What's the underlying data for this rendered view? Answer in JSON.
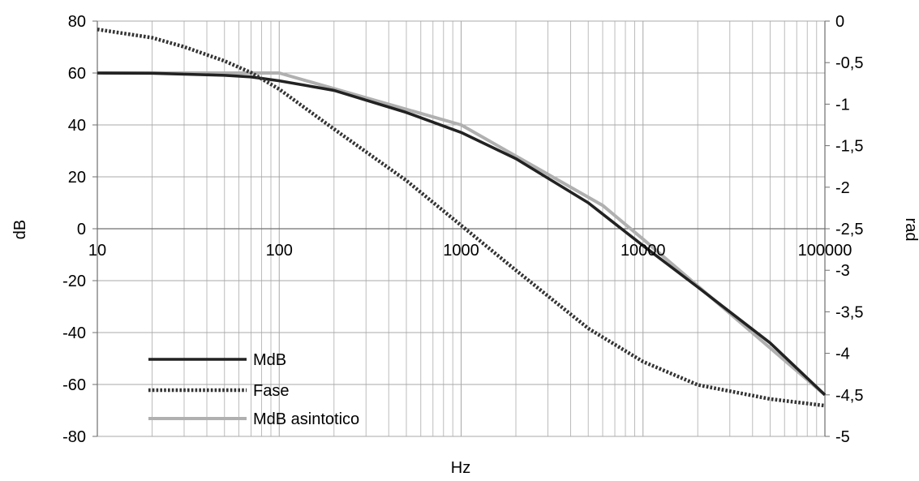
{
  "chart_data": {
    "type": "line",
    "xlabel": "Hz",
    "ylabel": "dB",
    "y2label": "rad",
    "xscale": "log",
    "xlim": [
      10,
      100000
    ],
    "ylim": [
      -80,
      80
    ],
    "y2lim": [
      -5,
      0
    ],
    "x_ticks": [
      "10",
      "100",
      "1000",
      "10000",
      "100000"
    ],
    "y_ticks": [
      "80",
      "60",
      "40",
      "20",
      "0",
      "-20",
      "-40",
      "-60",
      "-80"
    ],
    "y2_ticks": [
      "0",
      "-0,5",
      "-1",
      "-1,5",
      "-2",
      "-2,5",
      "-3",
      "-3,5",
      "-4",
      "-4,5",
      "-5"
    ],
    "grid": true,
    "legend_position": "bottom-left",
    "series": [
      {
        "name": "MdB",
        "axis": "left",
        "style": "solid",
        "color": "#222222",
        "x": [
          10,
          20,
          50,
          70,
          100,
          200,
          500,
          1000,
          2000,
          5000,
          10000,
          20000,
          50000,
          100000
        ],
        "y": [
          60,
          59.9,
          59.1,
          58.5,
          57,
          53.3,
          44.8,
          37.1,
          27,
          10,
          -6.5,
          -22.5,
          -44,
          -64
        ]
      },
      {
        "name": "Fase",
        "axis": "right",
        "style": "dotted",
        "color": "#333333",
        "x": [
          10,
          20,
          30,
          50,
          70,
          100,
          200,
          500,
          1000,
          2000,
          5000,
          10000,
          20000,
          50000,
          100000
        ],
        "y": [
          -0.1,
          -0.2,
          -0.31,
          -0.48,
          -0.62,
          -0.82,
          -1.3,
          -1.92,
          -2.46,
          -3.0,
          -3.7,
          -4.1,
          -4.38,
          -4.55,
          -4.63
        ]
      },
      {
        "name": "MdB asintotico",
        "axis": "left",
        "style": "solid",
        "color": "#b0b0b0",
        "x": [
          10,
          100,
          1000,
          6000,
          10000,
          100000
        ],
        "y": [
          60,
          60,
          40,
          9,
          -4,
          -64
        ]
      }
    ]
  }
}
